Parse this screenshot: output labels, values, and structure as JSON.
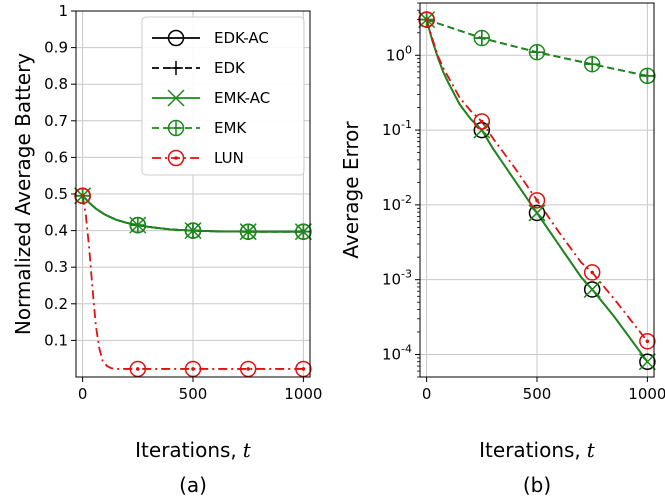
{
  "chart_data": [
    {
      "type": "line",
      "caption": "(a)",
      "xlabel_text": "Iterations,",
      "xlabel_var": "t",
      "ylabel": "Normalized Average Battery",
      "xlim": [
        -30,
        1030
      ],
      "ylim": [
        0.0,
        1.0
      ],
      "xticks": [
        "0",
        "500",
        "1000"
      ],
      "yticks": [
        "0.1",
        "0.2",
        "0.3",
        "0.4",
        "0.5",
        "0.6",
        "0.7",
        "0.8",
        "0.9",
        "1"
      ],
      "grid": true,
      "legend_position": "top-right",
      "series": [
        {
          "name": "EDK-AC",
          "color": "#000000",
          "dash": "solid",
          "marker": "circle",
          "x": [
            0,
            30,
            60,
            100,
            150,
            200,
            250,
            300,
            400,
            500,
            600,
            750,
            900,
            1000
          ],
          "y": [
            0.495,
            0.476,
            0.46,
            0.444,
            0.43,
            0.421,
            0.415,
            0.41,
            0.403,
            0.4,
            0.398,
            0.397,
            0.397,
            0.397
          ],
          "markers_x": [
            0,
            250,
            500,
            750,
            1000
          ]
        },
        {
          "name": "EDK",
          "color": "#000000",
          "dash": "dash",
          "marker": "plus",
          "x": [
            0,
            30,
            60,
            100,
            150,
            200,
            250,
            300,
            400,
            500,
            600,
            750,
            900,
            1000
          ],
          "y": [
            0.495,
            0.476,
            0.46,
            0.444,
            0.43,
            0.421,
            0.415,
            0.41,
            0.403,
            0.4,
            0.398,
            0.397,
            0.397,
            0.397
          ],
          "markers_x": [
            0,
            250,
            500,
            750,
            1000
          ]
        },
        {
          "name": "EMK-AC",
          "color": "#1a8a1a",
          "dash": "solid",
          "marker": "x",
          "x": [
            0,
            30,
            60,
            100,
            150,
            200,
            250,
            300,
            400,
            500,
            600,
            750,
            900,
            1000
          ],
          "y": [
            0.495,
            0.476,
            0.46,
            0.444,
            0.43,
            0.421,
            0.415,
            0.41,
            0.403,
            0.4,
            0.398,
            0.397,
            0.397,
            0.397
          ],
          "markers_x": [
            0,
            250,
            500,
            750,
            1000
          ]
        },
        {
          "name": "EMK",
          "color": "#1a8a1a",
          "dash": "dash",
          "marker": "circle-plus",
          "x": [
            0,
            30,
            60,
            100,
            150,
            200,
            250,
            300,
            400,
            500,
            600,
            750,
            900,
            1000
          ],
          "y": [
            0.495,
            0.476,
            0.46,
            0.444,
            0.43,
            0.421,
            0.415,
            0.41,
            0.403,
            0.4,
            0.398,
            0.397,
            0.397,
            0.397
          ],
          "markers_x": [
            0,
            250,
            500,
            750,
            1000
          ]
        },
        {
          "name": "LUN",
          "color": "#e01010",
          "dash": "dashdot",
          "marker": "circle-dot",
          "x": [
            0,
            15,
            30,
            45,
            60,
            75,
            90,
            110,
            130,
            160,
            250,
            500,
            750,
            1000
          ],
          "y": [
            0.495,
            0.44,
            0.35,
            0.24,
            0.14,
            0.08,
            0.045,
            0.03,
            0.024,
            0.022,
            0.022,
            0.022,
            0.022,
            0.022
          ],
          "markers_x": [
            0,
            250,
            500,
            750,
            1000
          ]
        }
      ]
    },
    {
      "type": "line",
      "caption": "(b)",
      "xlabel_text": "Iterations,",
      "xlabel_var": "t",
      "ylabel": "Average Error",
      "yscale": "log",
      "xlim": [
        -30,
        1030
      ],
      "ylim": [
        5e-05,
        5.0
      ],
      "xticks": [
        "0",
        "500",
        "1000"
      ],
      "yticks_log": [
        -4,
        -3,
        -2,
        -1,
        0
      ],
      "grid": true,
      "series": [
        {
          "name": "EDK-AC",
          "color": "#000000",
          "dash": "solid",
          "marker": "circle",
          "x": [
            0,
            25,
            50,
            75,
            100,
            150,
            200,
            250,
            300,
            400,
            500,
            600,
            700,
            750,
            850,
            1000
          ],
          "y": [
            3.0,
            1.6,
            0.95,
            0.6,
            0.42,
            0.22,
            0.14,
            0.1,
            0.057,
            0.021,
            0.0078,
            0.0029,
            0.00108,
            0.00074,
            0.00032,
            8e-05
          ],
          "markers_x": [
            0,
            250,
            500,
            750,
            1000
          ]
        },
        {
          "name": "EDK",
          "color": "#000000",
          "dash": "dash",
          "marker": "plus",
          "x": [
            0,
            250,
            500,
            750,
            1000
          ],
          "y": [
            3.0,
            1.7,
            1.1,
            0.76,
            0.53
          ],
          "markers_x": [
            0,
            250,
            500,
            750,
            1000
          ]
        },
        {
          "name": "EMK-AC",
          "color": "#1a8a1a",
          "dash": "solid",
          "marker": "x",
          "x": [
            0,
            25,
            50,
            75,
            100,
            150,
            200,
            250,
            300,
            400,
            500,
            600,
            700,
            750,
            850,
            1000
          ],
          "y": [
            3.0,
            1.6,
            0.95,
            0.6,
            0.42,
            0.22,
            0.14,
            0.1,
            0.057,
            0.021,
            0.0078,
            0.0029,
            0.00108,
            0.00074,
            0.00032,
            8e-05
          ],
          "markers_x": [
            0,
            250,
            500,
            750,
            1000
          ]
        },
        {
          "name": "EMK",
          "color": "#1a8a1a",
          "dash": "dash",
          "marker": "circle-plus",
          "x": [
            0,
            250,
            500,
            750,
            1000
          ],
          "y": [
            3.0,
            1.7,
            1.1,
            0.76,
            0.53
          ],
          "markers_x": [
            0,
            250,
            500,
            750,
            1000
          ]
        },
        {
          "name": "LUN",
          "color": "#e01010",
          "dash": "dashdot",
          "marker": "circle-dot",
          "x": [
            0,
            25,
            50,
            75,
            100,
            150,
            200,
            250,
            300,
            400,
            500,
            600,
            700,
            750,
            850,
            1000
          ],
          "y": [
            3.0,
            1.7,
            1.0,
            0.68,
            0.5,
            0.27,
            0.18,
            0.13,
            0.078,
            0.031,
            0.0115,
            0.0043,
            0.0017,
            0.00125,
            0.00055,
            0.00015
          ],
          "markers_x": [
            0,
            250,
            500,
            750,
            1000
          ]
        }
      ]
    }
  ]
}
